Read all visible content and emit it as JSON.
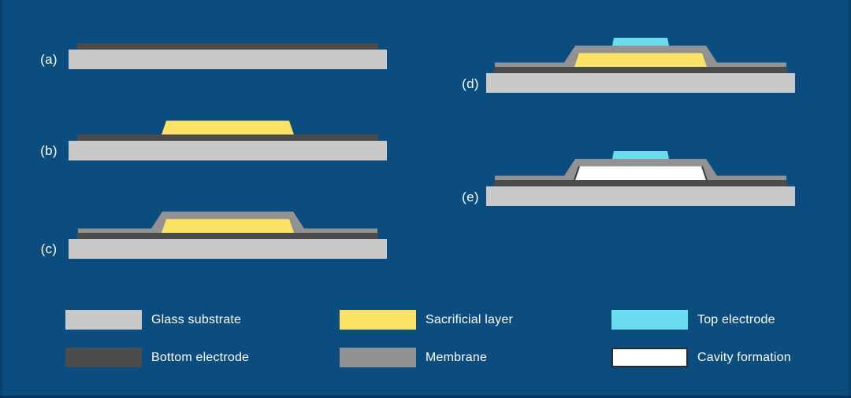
{
  "steps": [
    {
      "id": "a",
      "label": "(a)"
    },
    {
      "id": "b",
      "label": "(b)"
    },
    {
      "id": "c",
      "label": "(c)"
    },
    {
      "id": "d",
      "label": "(d)"
    },
    {
      "id": "e",
      "label": "(e)"
    }
  ],
  "legend": [
    {
      "label": "Glass substrate",
      "color": "#C9C9C9"
    },
    {
      "label": "Bottom electrode",
      "color": "#4B4B4B"
    },
    {
      "label": "Sacrificial layer",
      "color": "#FDE365"
    },
    {
      "label": "Membrane",
      "color": "#929292"
    },
    {
      "label": "Top electrode",
      "color": "#69DCEF"
    },
    {
      "label": "Cavity formation",
      "color": "#FFFFFF",
      "border": "#2B2B2B"
    }
  ],
  "colors": {
    "background": "#0C4D7F",
    "glass_substrate": "#C9C9C9",
    "bottom_electrode": "#4B4B4B",
    "sacrificial_layer": "#FDE365",
    "membrane": "#929292",
    "top_electrode": "#69DCEF",
    "cavity_fill": "#FFFFFF",
    "cavity_edge": "#3B3B3B",
    "label_text": "#FFFFFF"
  }
}
